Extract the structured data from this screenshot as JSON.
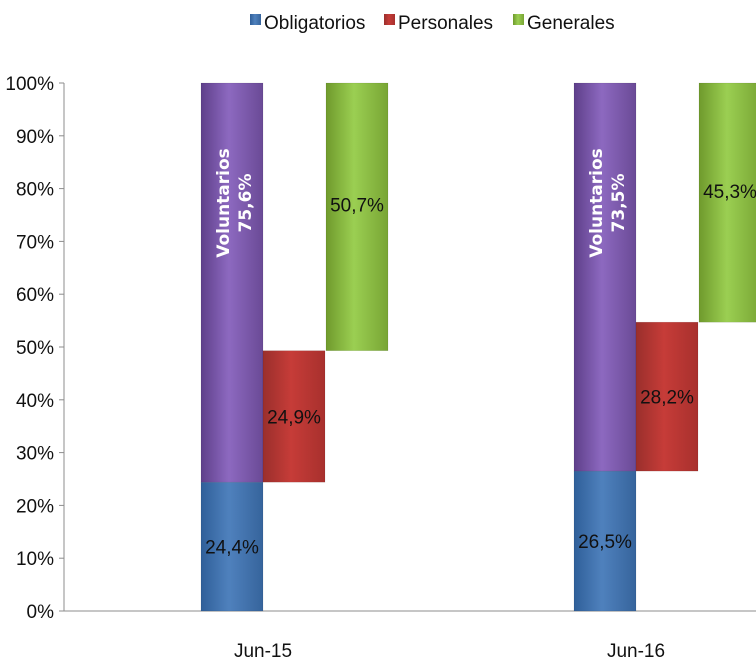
{
  "chart_data": {
    "type": "bar",
    "subtype": "waterfall-percent",
    "categories": [
      "Jun-15",
      "Jun-16"
    ],
    "y_ticks": [
      "0%",
      "10%",
      "20%",
      "30%",
      "40%",
      "50%",
      "60%",
      "70%",
      "80%",
      "90%",
      "100%"
    ],
    "ylim": [
      0,
      100
    ],
    "legend": {
      "position": "top",
      "entries": [
        "Obligatorios",
        "Personales",
        "Generales"
      ]
    },
    "colors": {
      "Obligatorios": "#4f81bd",
      "Personales": "#c0504d",
      "Generales": "#9bbb59",
      "Voluntarios": "#8064a2"
    },
    "groups": [
      {
        "category": "Jun-15",
        "bars": [
          {
            "series": "Obligatorios",
            "start": 0,
            "end": 24.4,
            "label": "24,4%"
          },
          {
            "series": "Voluntarios",
            "start": 24.4,
            "end": 100,
            "label_line1": "Voluntarios",
            "label_line2": "75,6%"
          },
          {
            "series": "Personales",
            "start": 24.4,
            "end": 49.3,
            "label": "24,9%"
          },
          {
            "series": "Generales",
            "start": 49.3,
            "end": 100,
            "label": "50,7%"
          }
        ]
      },
      {
        "category": "Jun-16",
        "bars": [
          {
            "series": "Obligatorios",
            "start": 0,
            "end": 26.5,
            "label": "26,5%"
          },
          {
            "series": "Voluntarios",
            "start": 26.5,
            "end": 100,
            "label_line1": "Voluntarios",
            "label_line2": "73,5%"
          },
          {
            "series": "Personales",
            "start": 26.5,
            "end": 54.7,
            "label": "28,2%"
          },
          {
            "series": "Generales",
            "start": 54.7,
            "end": 100,
            "label": "45,3%"
          }
        ]
      }
    ]
  }
}
